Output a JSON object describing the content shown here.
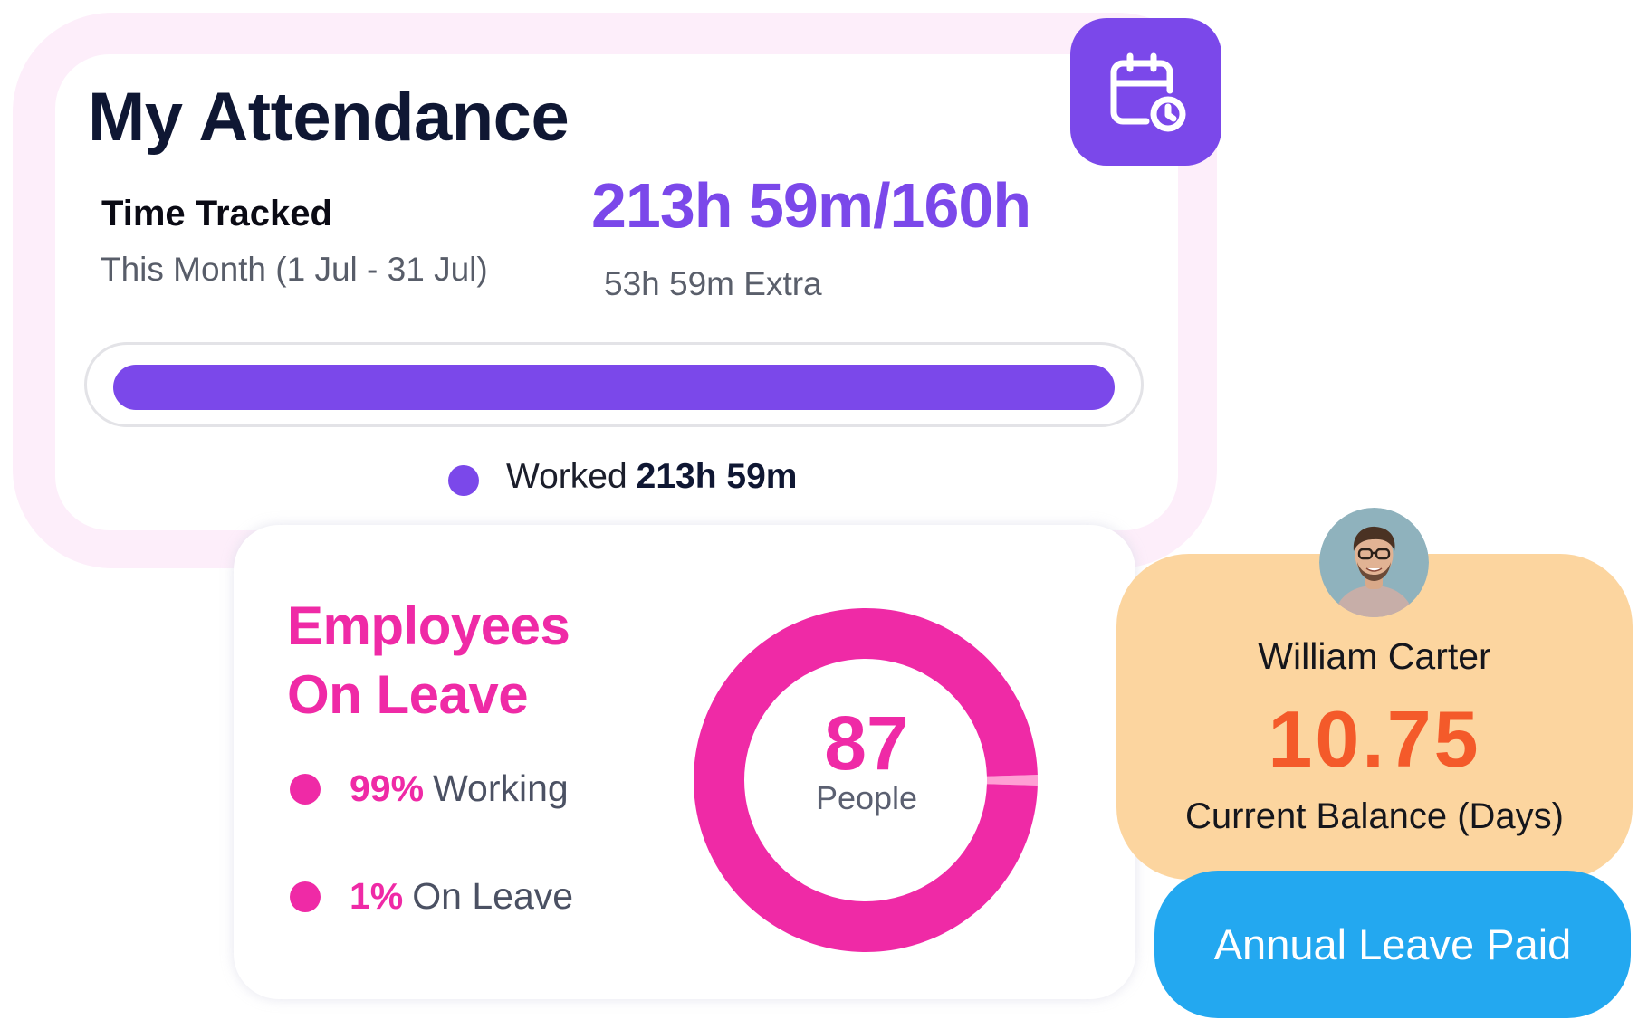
{
  "attendance": {
    "title": "My Attendance",
    "icon": "calendar-clock-icon",
    "time_tracked_label": "Time Tracked",
    "period": "This Month (1 Jul - 31 Jul)",
    "hours_total": "213h 59m/160h",
    "extra": "53h 59m Extra",
    "progress_fraction": 1.0,
    "legend": {
      "label": "Worked",
      "value": "213h 59m"
    }
  },
  "leave_summary": {
    "title_line1": "Employees",
    "title_line2": "On Leave",
    "rows": [
      {
        "pct": "99%",
        "label": "Working"
      },
      {
        "pct": "1%",
        "label": "On Leave"
      }
    ],
    "total": "87",
    "total_label": "People"
  },
  "leave_balance": {
    "employee_name": "William Carter",
    "balance": "10.75",
    "balance_label": "Current Balance (Days)",
    "leave_type": "Annual Leave Paid"
  },
  "chart_data": {
    "type": "pie",
    "categories": [
      "Working",
      "On Leave"
    ],
    "values": [
      99,
      1
    ],
    "title": "",
    "center_value": 87,
    "center_label": "People",
    "colors": [
      "#ef2aa6",
      "#ff9fd4"
    ]
  },
  "colors": {
    "primary_purple": "#7b48ea",
    "magenta": "#ef2aa6",
    "light_magenta": "#ff9fd4",
    "peach": "#fcd59f",
    "orange": "#f45a2a",
    "sky_blue": "#23a8f0",
    "halo_pink": "#fdeefa"
  }
}
